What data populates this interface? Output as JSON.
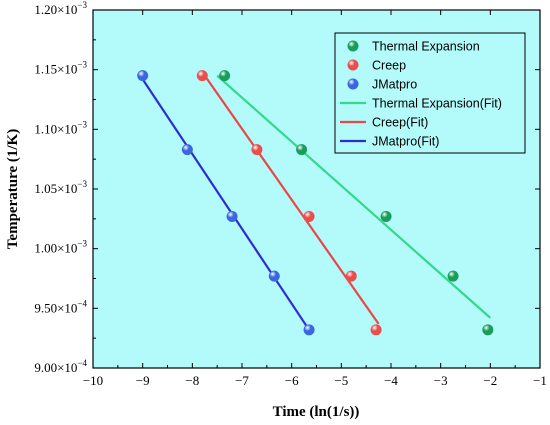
{
  "chart_data": {
    "type": "scatter",
    "xlabel": "Time (ln(1/s))",
    "ylabel": "Temperature (1/K)",
    "xlim": [
      -10,
      -1
    ],
    "ylim": [
      0.0009,
      0.0012
    ],
    "x_ticks": [
      -10,
      -9,
      -8,
      -7,
      -6,
      -5,
      -4,
      -3,
      -2,
      -1
    ],
    "y_tick_values": [
      0.0009,
      0.00095,
      0.001,
      0.00105,
      0.0011,
      0.00115,
      0.0012
    ],
    "y_tick_labels": [
      {
        "mantissa": "9.00×10",
        "exp": "−4"
      },
      {
        "mantissa": "9.50×10",
        "exp": "−4"
      },
      {
        "mantissa": "1.00×10",
        "exp": "−3"
      },
      {
        "mantissa": "1.05×10",
        "exp": "−3"
      },
      {
        "mantissa": "1.10×10",
        "exp": "−3"
      },
      {
        "mantissa": "1.15×10",
        "exp": "−3"
      },
      {
        "mantissa": "1.20×10",
        "exp": "−3"
      }
    ],
    "plot_background": "#b3fafa",
    "legend_position": "top-right",
    "series": [
      {
        "name": "Thermal Expansion",
        "color": "#1a9d5a",
        "fit_name": "Thermal Expansion(Fit)",
        "fit_color": "#34d88a",
        "points": [
          {
            "x": -7.35,
            "y": 0.001145
          },
          {
            "x": -5.8,
            "y": 0.001083
          },
          {
            "x": -4.1,
            "y": 0.001027
          },
          {
            "x": -2.75,
            "y": 0.000977
          },
          {
            "x": -2.05,
            "y": 0.000932
          }
        ],
        "fit": [
          {
            "x": -7.5,
            "y": 0.001145
          },
          {
            "x": -2.0,
            "y": 0.000942
          }
        ]
      },
      {
        "name": "Creep",
        "color": "#e94d4d",
        "fit_name": "Creep(Fit)",
        "fit_color": "#e84848",
        "points": [
          {
            "x": -7.8,
            "y": 0.001145
          },
          {
            "x": -6.7,
            "y": 0.001083
          },
          {
            "x": -5.65,
            "y": 0.001027
          },
          {
            "x": -4.8,
            "y": 0.000977
          },
          {
            "x": -4.3,
            "y": 0.000932
          }
        ],
        "fit": [
          {
            "x": -7.75,
            "y": 0.001145
          },
          {
            "x": -4.25,
            "y": 0.000937
          }
        ]
      },
      {
        "name": "JMatpro",
        "color": "#3a66e0",
        "fit_name": "JMatpro(Fit)",
        "fit_color": "#2d2dd6",
        "points": [
          {
            "x": -9.0,
            "y": 0.001145
          },
          {
            "x": -8.1,
            "y": 0.001083
          },
          {
            "x": -7.2,
            "y": 0.001027
          },
          {
            "x": -6.35,
            "y": 0.000977
          },
          {
            "x": -5.65,
            "y": 0.000932
          }
        ],
        "fit": [
          {
            "x": -9.0,
            "y": 0.001142
          },
          {
            "x": -5.65,
            "y": 0.000932
          }
        ]
      }
    ]
  }
}
